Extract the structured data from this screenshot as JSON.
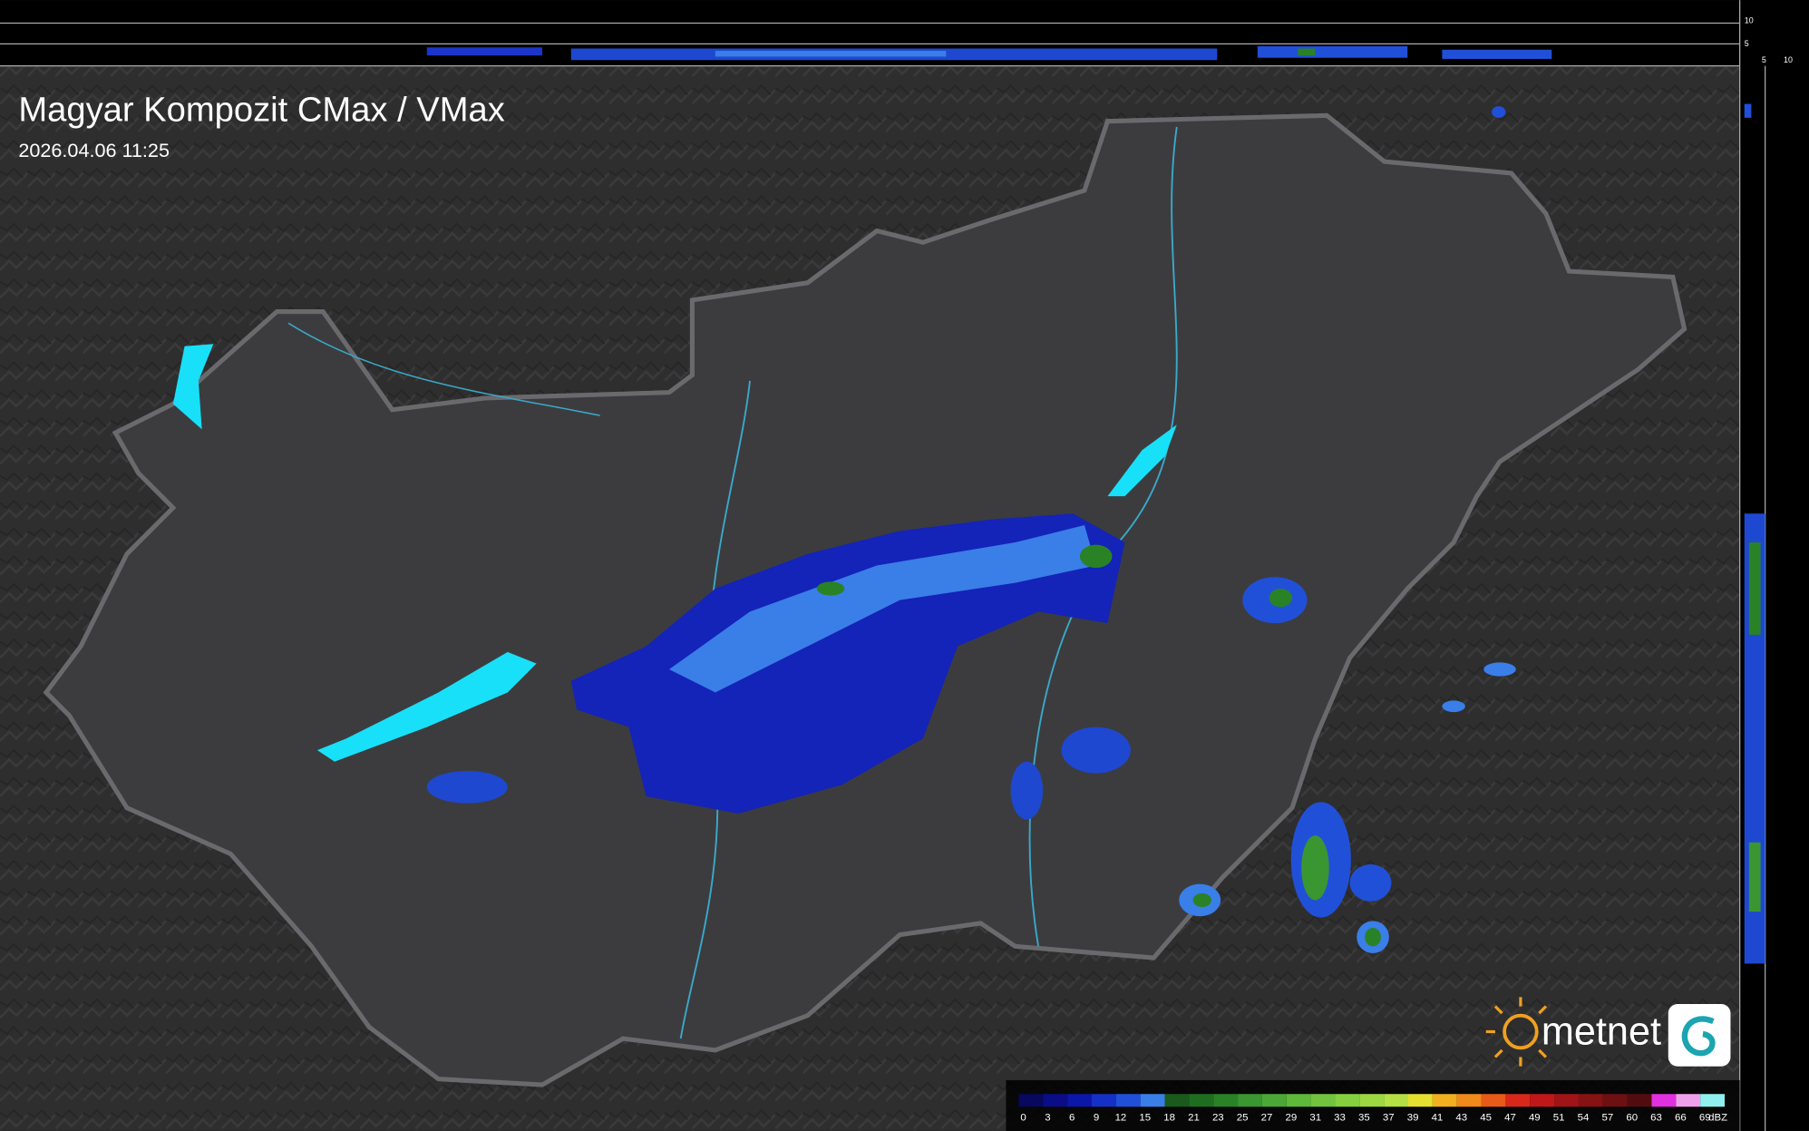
{
  "header": {
    "title": "Magyar Kompozit CMax / VMax",
    "timestamp": "2026.04.06 11:25"
  },
  "profile_scale": {
    "top": [
      "10",
      "5"
    ],
    "side": [
      "5",
      "10"
    ]
  },
  "logo": {
    "text": "metnet"
  },
  "legend": {
    "ticks": [
      "0",
      "3",
      "6",
      "9",
      "12",
      "15",
      "18",
      "21",
      "23",
      "25",
      "27",
      "29",
      "31",
      "33",
      "35",
      "37",
      "39",
      "41",
      "43",
      "45",
      "47",
      "49",
      "51",
      "54",
      "57",
      "60",
      "63",
      "66",
      "69"
    ],
    "unit": "dBZ",
    "colors": [
      "#07085e",
      "#0a0d86",
      "#0c16a8",
      "#1530c6",
      "#2150d8",
      "#3a7ee8",
      "#1a5a1c",
      "#1f6e20",
      "#2a8226",
      "#3a9630",
      "#4ca836",
      "#5eb83a",
      "#72c43e",
      "#86d040",
      "#9cd842",
      "#b4e046",
      "#e4e030",
      "#f0b020",
      "#f08a1a",
      "#e85a18",
      "#d8281a",
      "#c01818",
      "#a01418",
      "#861214",
      "#6c1012",
      "#520c10",
      "#e030e0",
      "#f0a0e8",
      "#90f0f0"
    ]
  }
}
